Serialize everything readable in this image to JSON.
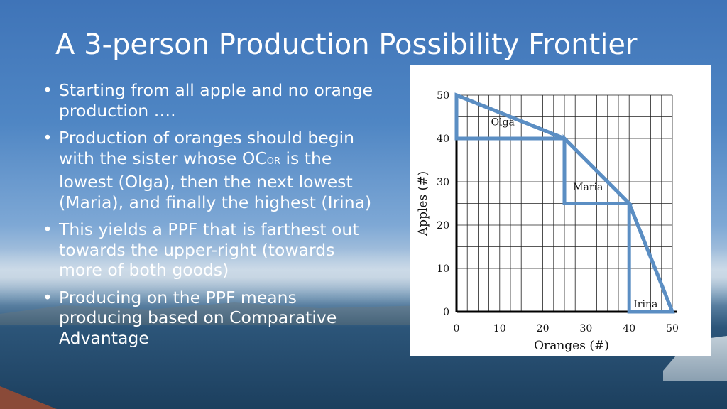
{
  "slide": {
    "title": "A 3-person Production Possibility Frontier",
    "bullets": [
      {
        "text": "Starting from all apple and no orange production …."
      },
      {
        "pre": "Production of oranges should begin with the sister whose OC",
        "sub": "OR",
        "post": " is the lowest (Olga), then the next lowest (Maria), and finally the highest (Irina)"
      },
      {
        "text": "This yields a PPF that is farthest out towards the upper-right (towards more of both goods)"
      },
      {
        "text": "Producing on the PPF means producing based on Comparative Advantage"
      }
    ]
  },
  "colors": {
    "line": "#5b8ec3",
    "text": "#ffffff"
  },
  "chart_data": {
    "type": "line",
    "xlabel": "Oranges (#)",
    "ylabel": "Apples (#)",
    "xlim": [
      0,
      50
    ],
    "ylim": [
      0,
      50
    ],
    "xticks": [
      0,
      10,
      20,
      30,
      40,
      50
    ],
    "yticks": [
      0,
      10,
      20,
      30,
      40,
      50
    ],
    "grid": true,
    "series": [
      {
        "name": "PPF",
        "points": [
          [
            0,
            50
          ],
          [
            25,
            40
          ],
          [
            40,
            25
          ],
          [
            50,
            0
          ]
        ]
      }
    ],
    "segments": [
      {
        "label": "Olga",
        "triangle": [
          [
            0,
            50
          ],
          [
            25,
            40
          ],
          [
            0,
            40
          ]
        ],
        "label_at": [
          8,
          43
        ]
      },
      {
        "label": "Maria",
        "triangle": [
          [
            25,
            40
          ],
          [
            40,
            25
          ],
          [
            25,
            25
          ]
        ],
        "label_at": [
          27,
          28
        ]
      },
      {
        "label": "Irina",
        "triangle": [
          [
            40,
            25
          ],
          [
            50,
            0
          ],
          [
            40,
            0
          ]
        ],
        "label_at": [
          41,
          1
        ]
      }
    ]
  }
}
